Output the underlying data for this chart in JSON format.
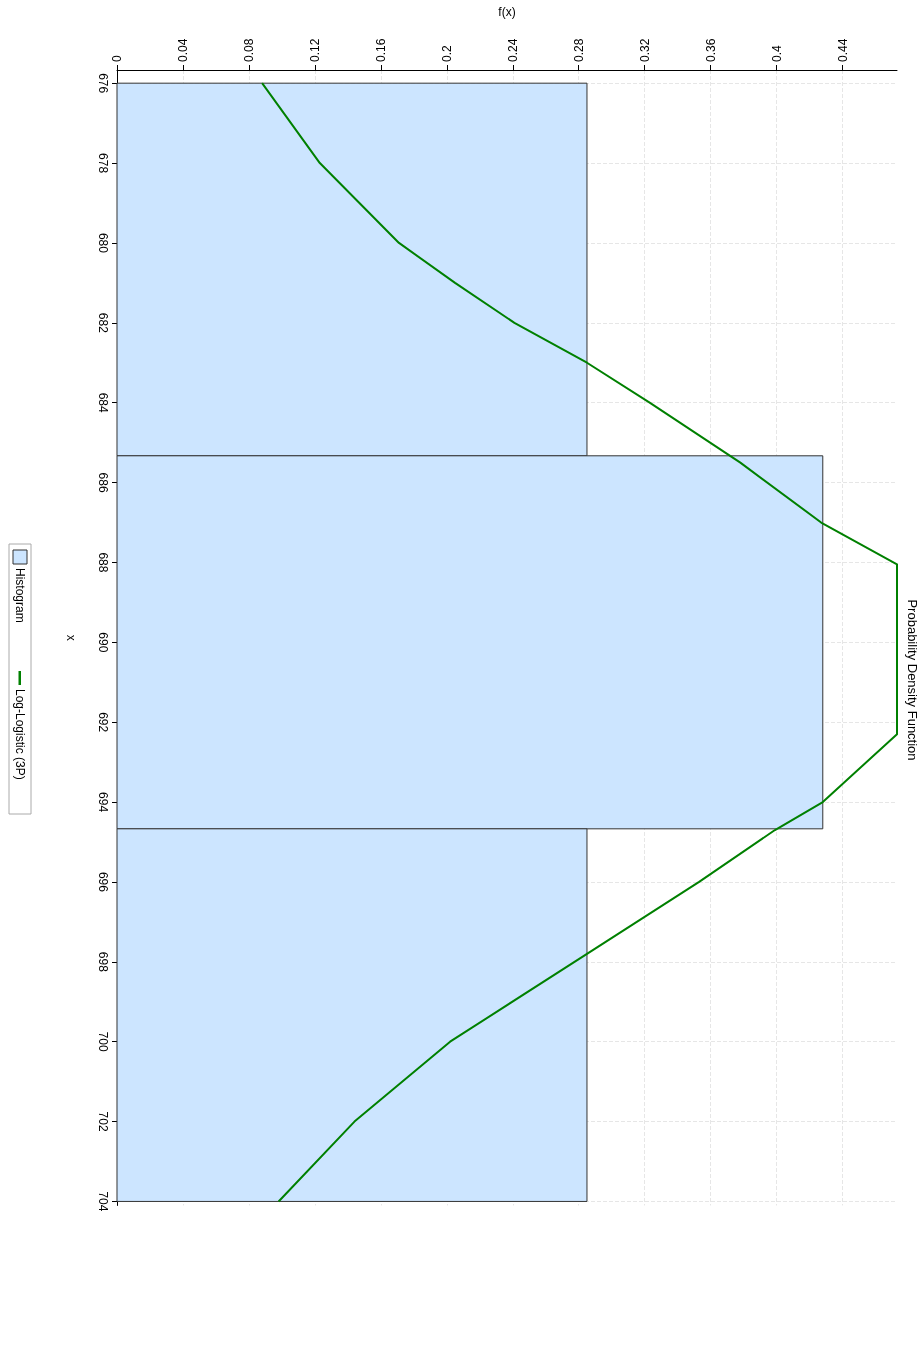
{
  "chart_data": {
    "type": "histogram",
    "orientation": "horizontal",
    "title": "Probability Density Function",
    "xlabel": "f(x)",
    "ylabel": "x",
    "xlim": [
      0,
      0.473
    ],
    "xticks": [
      0,
      0.04,
      0.08,
      0.12,
      0.16,
      0.2,
      0.24,
      0.28,
      0.32,
      0.36,
      0.4,
      0.44
    ],
    "ylim": [
      704.1,
      675.67
    ],
    "yticks": [
      676,
      678,
      680,
      682,
      684,
      686,
      688,
      690,
      692,
      694,
      696,
      698,
      700,
      702,
      704
    ],
    "grid": true,
    "legend": "left",
    "series": [
      {
        "name": "Histogram",
        "color": "#cce5ff",
        "bins": [
          676,
          685.33,
          694.67,
          704
        ],
        "values": [
          0.285,
          0.428,
          0.285
        ]
      },
      {
        "name": "Log-Logistic (3P)",
        "type": "line",
        "color": "#008000",
        "x": [
          676,
          678,
          679,
          680,
          681,
          682,
          683,
          684,
          685.5,
          687,
          688.05,
          692.3,
          694,
          694.7,
          696,
          697.8,
          700,
          702,
          704
        ],
        "values": [
          0.088,
          0.123,
          0.147,
          0.171,
          0.205,
          0.241,
          0.285,
          0.323,
          0.378,
          0.427,
          0.473,
          0.473,
          0.428,
          0.399,
          0.353,
          0.285,
          0.202,
          0.144,
          0.098
        ]
      }
    ]
  }
}
